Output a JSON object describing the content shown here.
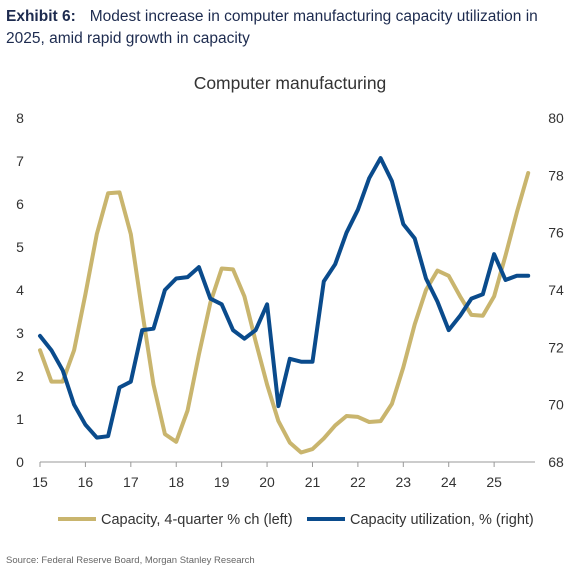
{
  "header": {
    "exhibit_label": "Exhibit 6:",
    "headline": "Modest increase in computer manufacturing capacity utilization in 2025, amid rapid growth in capacity"
  },
  "source": "Source: Federal Reserve Board, Morgan Stanley Research",
  "chart_data": {
    "type": "line",
    "title": "Computer manufacturing",
    "xlabel": "",
    "ylabel_left": "",
    "ylabel_right": "",
    "x_tick_labels": [
      "15",
      "16",
      "17",
      "18",
      "19",
      "20",
      "21",
      "22",
      "23",
      "24",
      "25"
    ],
    "x_tick_values": [
      2015,
      2016,
      2017,
      2018,
      2019,
      2020,
      2021,
      2022,
      2023,
      2024,
      2025
    ],
    "xlim": [
      2015.0,
      2025.9
    ],
    "ylim_left": [
      0,
      8
    ],
    "ylim_right": [
      68,
      80
    ],
    "left_ticks": [
      "0",
      "1",
      "2",
      "3",
      "4",
      "5",
      "6",
      "7",
      "8"
    ],
    "right_ticks": [
      "68",
      "70",
      "72",
      "74",
      "76",
      "78",
      "80"
    ],
    "grid": false,
    "legend_position": "bottom",
    "series": [
      {
        "name": "Capacity, 4-quarter % ch (left)",
        "axis": "left",
        "color": "#c9b56e",
        "x": [
          2015.0,
          2015.25,
          2015.5,
          2015.75,
          2016.0,
          2016.25,
          2016.5,
          2016.75,
          2017.0,
          2017.25,
          2017.5,
          2017.75,
          2018.0,
          2018.25,
          2018.5,
          2018.75,
          2019.0,
          2019.25,
          2019.5,
          2019.75,
          2020.0,
          2020.25,
          2020.5,
          2020.75,
          2021.0,
          2021.25,
          2021.5,
          2021.75,
          2022.0,
          2022.25,
          2022.5,
          2022.75,
          2023.0,
          2023.25,
          2023.5,
          2023.75,
          2024.0,
          2024.25,
          2024.5,
          2024.75,
          2025.0,
          2025.25,
          2025.5,
          2025.75
        ],
        "values": [
          2.6,
          1.87,
          1.87,
          2.6,
          3.9,
          5.3,
          6.25,
          6.27,
          5.3,
          3.5,
          1.8,
          0.65,
          0.47,
          1.2,
          2.5,
          3.7,
          4.5,
          4.48,
          3.85,
          2.8,
          1.8,
          0.95,
          0.45,
          0.22,
          0.3,
          0.55,
          0.85,
          1.07,
          1.05,
          0.93,
          0.95,
          1.35,
          2.2,
          3.2,
          4.0,
          4.45,
          4.33,
          3.85,
          3.42,
          3.4,
          3.85,
          4.8,
          5.8,
          6.72
        ]
      },
      {
        "name": "Capacity utilization, % (right)",
        "axis": "right",
        "color": "#0a4b8c",
        "x": [
          2015.0,
          2015.25,
          2015.5,
          2015.75,
          2016.0,
          2016.25,
          2016.5,
          2016.75,
          2017.0,
          2017.25,
          2017.5,
          2017.75,
          2018.0,
          2018.25,
          2018.5,
          2018.75,
          2019.0,
          2019.25,
          2019.5,
          2019.75,
          2020.0,
          2020.25,
          2020.5,
          2020.75,
          2021.0,
          2021.25,
          2021.5,
          2021.75,
          2022.0,
          2022.25,
          2022.5,
          2022.75,
          2023.0,
          2023.25,
          2023.5,
          2023.75,
          2024.0,
          2024.25,
          2024.5,
          2024.75,
          2025.0,
          2025.25,
          2025.5,
          2025.75
        ],
        "values": [
          72.4,
          71.9,
          71.2,
          70.0,
          69.3,
          68.85,
          68.9,
          70.6,
          70.8,
          72.6,
          72.65,
          74.0,
          74.4,
          74.45,
          74.8,
          73.7,
          73.5,
          72.6,
          72.3,
          72.6,
          73.5,
          69.95,
          71.6,
          71.5,
          71.5,
          74.3,
          74.9,
          76.0,
          76.8,
          77.9,
          78.6,
          77.8,
          76.3,
          75.8,
          74.4,
          73.6,
          72.6,
          73.1,
          73.7,
          73.85,
          75.25,
          74.35,
          74.5,
          74.5
        ]
      }
    ]
  }
}
